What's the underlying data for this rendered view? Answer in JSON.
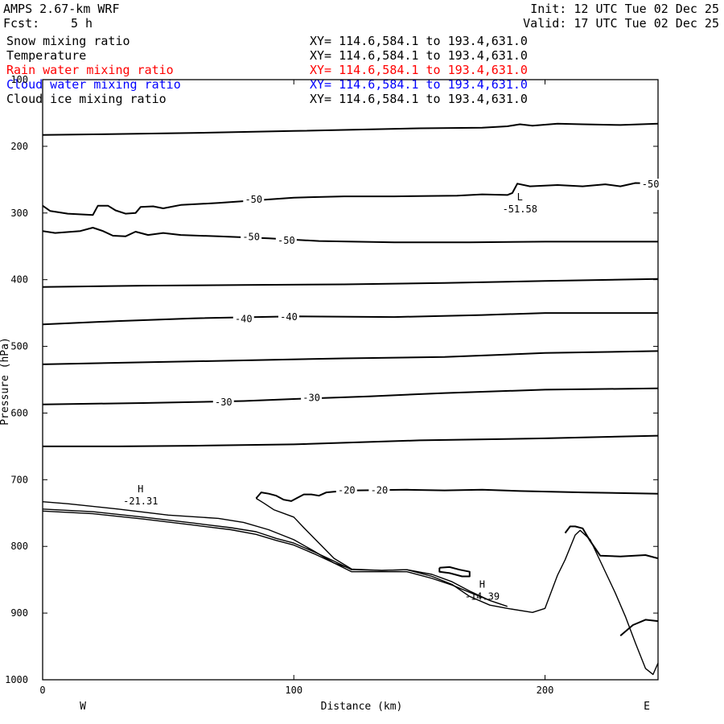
{
  "header": {
    "model": "AMPS 2.67-km WRF",
    "init": "Init: 12 UTC Tue 02 Dec 25",
    "fcst_label": "Fcst:",
    "fcst_value": "5 h",
    "valid": "Valid: 17 UTC Tue 02 Dec 25",
    "fields": [
      {
        "name": "Snow mixing ratio",
        "xy": "XY= 114.6,584.1 to 193.4,631.0",
        "color": "#000000"
      },
      {
        "name": "Temperature",
        "xy": "XY= 114.6,584.1 to 193.4,631.0",
        "color": "#000000"
      },
      {
        "name": "Rain water mixing ratio",
        "xy": "XY= 114.6,584.1 to 193.4,631.0",
        "color": "#ff0000"
      },
      {
        "name": "Cloud water mixing ratio",
        "xy": "XY= 114.6,584.1 to 193.4,631.0",
        "color": "#0000ff"
      },
      {
        "name": "Cloud ice mixing ratio",
        "xy": "XY= 114.6,584.1 to 193.4,631.0",
        "color": "#000000"
      }
    ]
  },
  "chart_data": {
    "type": "line",
    "title": "Temperature",
    "xlabel": "Distance (km)",
    "ylabel": "Pressure (hPa)",
    "xlim": [
      0,
      245
    ],
    "ylim": [
      1000,
      100
    ],
    "x_ticks": [
      0,
      100,
      200
    ],
    "y_ticks": [
      100,
      200,
      300,
      400,
      500,
      600,
      700,
      800,
      900,
      1000
    ],
    "x_end_labels": {
      "left": "W",
      "right": "E"
    },
    "grid": false,
    "series": [
      {
        "points": [
          [
            0,
            183
          ],
          [
            20,
            182
          ],
          [
            60,
            180
          ],
          [
            100,
            177
          ],
          [
            150,
            173
          ],
          [
            175,
            172
          ],
          [
            185,
            170
          ],
          [
            190,
            167
          ],
          [
            195,
            169
          ],
          [
            205,
            166
          ],
          [
            215,
            167
          ],
          [
            230,
            168
          ],
          [
            245,
            166
          ]
        ]
      },
      {
        "points": [
          [
            0,
            289
          ],
          [
            3,
            297
          ],
          [
            10,
            301
          ],
          [
            20,
            303
          ],
          [
            22,
            289
          ],
          [
            26,
            289
          ],
          [
            29,
            296
          ],
          [
            33,
            301
          ],
          [
            37,
            300
          ],
          [
            39,
            291
          ],
          [
            44,
            290
          ],
          [
            48,
            293
          ],
          [
            55,
            288
          ],
          [
            70,
            285
          ],
          [
            85,
            281
          ],
          [
            100,
            277
          ],
          [
            120,
            275
          ],
          [
            140,
            275
          ],
          [
            165,
            274
          ],
          [
            175,
            272
          ],
          [
            185,
            273
          ],
          [
            187,
            270
          ],
          [
            189,
            256
          ],
          [
            194,
            260
          ],
          [
            205,
            258
          ],
          [
            215,
            260
          ],
          [
            224,
            257
          ],
          [
            230,
            260
          ],
          [
            236,
            255
          ],
          [
            245,
            256
          ]
        ]
      },
      {
        "points": [
          [
            0,
            327
          ],
          [
            5,
            330
          ],
          [
            15,
            327
          ],
          [
            20,
            322
          ],
          [
            24,
            327
          ],
          [
            28,
            334
          ],
          [
            33,
            335
          ],
          [
            37,
            328
          ],
          [
            42,
            333
          ],
          [
            48,
            330
          ],
          [
            55,
            333
          ],
          [
            70,
            335
          ],
          [
            90,
            338
          ],
          [
            110,
            342
          ],
          [
            140,
            344
          ],
          [
            170,
            344
          ],
          [
            200,
            343
          ],
          [
            225,
            343
          ],
          [
            245,
            343
          ]
        ]
      },
      {
        "points": [
          [
            0,
            411
          ],
          [
            40,
            409
          ],
          [
            80,
            408
          ],
          [
            120,
            407
          ],
          [
            160,
            405
          ],
          [
            200,
            402
          ],
          [
            245,
            399
          ]
        ]
      },
      {
        "points": [
          [
            0,
            467
          ],
          [
            30,
            462
          ],
          [
            60,
            458
          ],
          [
            100,
            455
          ],
          [
            140,
            456
          ],
          [
            175,
            453
          ],
          [
            200,
            450
          ],
          [
            230,
            450
          ],
          [
            245,
            450
          ]
        ]
      },
      {
        "points": [
          [
            0,
            527
          ],
          [
            40,
            524
          ],
          [
            80,
            521
          ],
          [
            120,
            518
          ],
          [
            160,
            516
          ],
          [
            200,
            510
          ],
          [
            245,
            507
          ]
        ]
      },
      {
        "points": [
          [
            0,
            587
          ],
          [
            40,
            585
          ],
          [
            80,
            582
          ],
          [
            100,
            579
          ],
          [
            130,
            575
          ],
          [
            160,
            570
          ],
          [
            200,
            565
          ],
          [
            245,
            563
          ]
        ]
      },
      {
        "points": [
          [
            0,
            650
          ],
          [
            30,
            650
          ],
          [
            60,
            649
          ],
          [
            100,
            647
          ],
          [
            150,
            641
          ],
          [
            200,
            638
          ],
          [
            245,
            634
          ]
        ]
      },
      {
        "points": [
          [
            85,
            728
          ],
          [
            87,
            719
          ],
          [
            90,
            721
          ],
          [
            93,
            724
          ],
          [
            96,
            730
          ],
          [
            99,
            732
          ],
          [
            101,
            728
          ],
          [
            104,
            722
          ],
          [
            107,
            722
          ],
          [
            110,
            724
          ],
          [
            113,
            719
          ],
          [
            116,
            718
          ],
          [
            125,
            716
          ],
          [
            145,
            715
          ],
          [
            160,
            716
          ],
          [
            175,
            715
          ],
          [
            190,
            717
          ],
          [
            215,
            719
          ],
          [
            245,
            721
          ]
        ]
      },
      {
        "points": [
          [
            208,
            780
          ],
          [
            210,
            770
          ],
          [
            212,
            770
          ],
          [
            215,
            773
          ],
          [
            218,
            792
          ],
          [
            222,
            814
          ],
          [
            230,
            815
          ],
          [
            240,
            813
          ],
          [
            245,
            818
          ]
        ]
      },
      {
        "points": [
          [
            230,
            934
          ],
          [
            235,
            918
          ],
          [
            240,
            910
          ],
          [
            245,
            912
          ]
        ]
      },
      {
        "points": [
          [
            158,
            832
          ],
          [
            162,
            831
          ],
          [
            166,
            835
          ],
          [
            170,
            838
          ],
          [
            170,
            845
          ],
          [
            167,
            845
          ],
          [
            162,
            840
          ],
          [
            158,
            838
          ],
          [
            158,
            832
          ]
        ]
      }
    ],
    "terrain_lines": [
      {
        "points": [
          [
            0,
            744
          ],
          [
            20,
            748
          ],
          [
            40,
            756
          ],
          [
            60,
            765
          ],
          [
            75,
            772
          ],
          [
            85,
            778
          ],
          [
            93,
            788
          ],
          [
            100,
            795
          ],
          [
            108,
            808
          ],
          [
            116,
            822
          ],
          [
            123,
            835
          ],
          [
            135,
            836
          ],
          [
            145,
            835
          ],
          [
            155,
            845
          ],
          [
            163,
            857
          ],
          [
            170,
            875
          ],
          [
            178,
            888
          ],
          [
            185,
            893
          ],
          [
            195,
            899
          ],
          [
            200,
            893
          ],
          [
            205,
            843
          ],
          [
            208,
            820
          ],
          [
            212,
            783
          ],
          [
            214,
            776
          ],
          [
            218,
            790
          ],
          [
            222,
            822
          ],
          [
            228,
            870
          ],
          [
            232,
            905
          ],
          [
            236,
            945
          ],
          [
            240,
            983
          ],
          [
            243,
            992
          ],
          [
            245,
            975
          ]
        ]
      },
      {
        "points": [
          [
            0,
            747
          ],
          [
            20,
            751
          ],
          [
            40,
            759
          ],
          [
            60,
            768
          ],
          [
            75,
            775
          ],
          [
            85,
            782
          ],
          [
            93,
            791
          ],
          [
            100,
            798
          ],
          [
            108,
            811
          ],
          [
            116,
            825
          ],
          [
            123,
            838
          ],
          [
            135,
            838
          ],
          [
            145,
            838
          ],
          [
            155,
            848
          ],
          [
            163,
            858
          ],
          [
            170,
            869
          ],
          [
            178,
            881
          ]
        ]
      },
      {
        "points": [
          [
            0,
            733
          ],
          [
            10,
            736
          ],
          [
            30,
            744
          ],
          [
            50,
            753
          ],
          [
            70,
            758
          ],
          [
            80,
            764
          ],
          [
            90,
            775
          ],
          [
            100,
            790
          ],
          [
            108,
            807
          ],
          [
            116,
            825
          ],
          [
            123,
            834
          ],
          [
            135,
            836
          ],
          [
            145,
            835
          ],
          [
            155,
            842
          ],
          [
            163,
            853
          ],
          [
            170,
            867
          ],
          [
            178,
            881
          ],
          [
            185,
            890
          ]
        ]
      },
      {
        "points": [
          [
            85,
            728
          ],
          [
            88,
            735
          ],
          [
            92,
            745
          ],
          [
            100,
            756
          ],
          [
            104,
            772
          ],
          [
            110,
            795
          ],
          [
            116,
            818
          ],
          [
            123,
            834
          ]
        ]
      }
    ],
    "contour_labels": [
      {
        "text": "-50",
        "x": 84,
        "y": 280
      },
      {
        "text": "-50",
        "x": 242,
        "y": 257
      },
      {
        "text": "-50",
        "x": 83,
        "y": 336
      },
      {
        "text": "-50",
        "x": 97,
        "y": 341
      },
      {
        "text": "-40",
        "x": 80,
        "y": 459
      },
      {
        "text": "-40",
        "x": 98,
        "y": 456
      },
      {
        "text": "-30",
        "x": 72,
        "y": 584
      },
      {
        "text": "-30",
        "x": 107,
        "y": 577
      },
      {
        "text": "-20",
        "x": 121,
        "y": 716
      },
      {
        "text": "-20",
        "x": 134,
        "y": 716
      }
    ],
    "extrema": [
      {
        "kind": "L",
        "value": "-51.58",
        "x": 190,
        "y": 281
      },
      {
        "kind": "H",
        "value": "-21.31",
        "x": 39,
        "y": 719
      },
      {
        "kind": "H",
        "value": "-14.39",
        "x": 175,
        "y": 862
      }
    ]
  }
}
